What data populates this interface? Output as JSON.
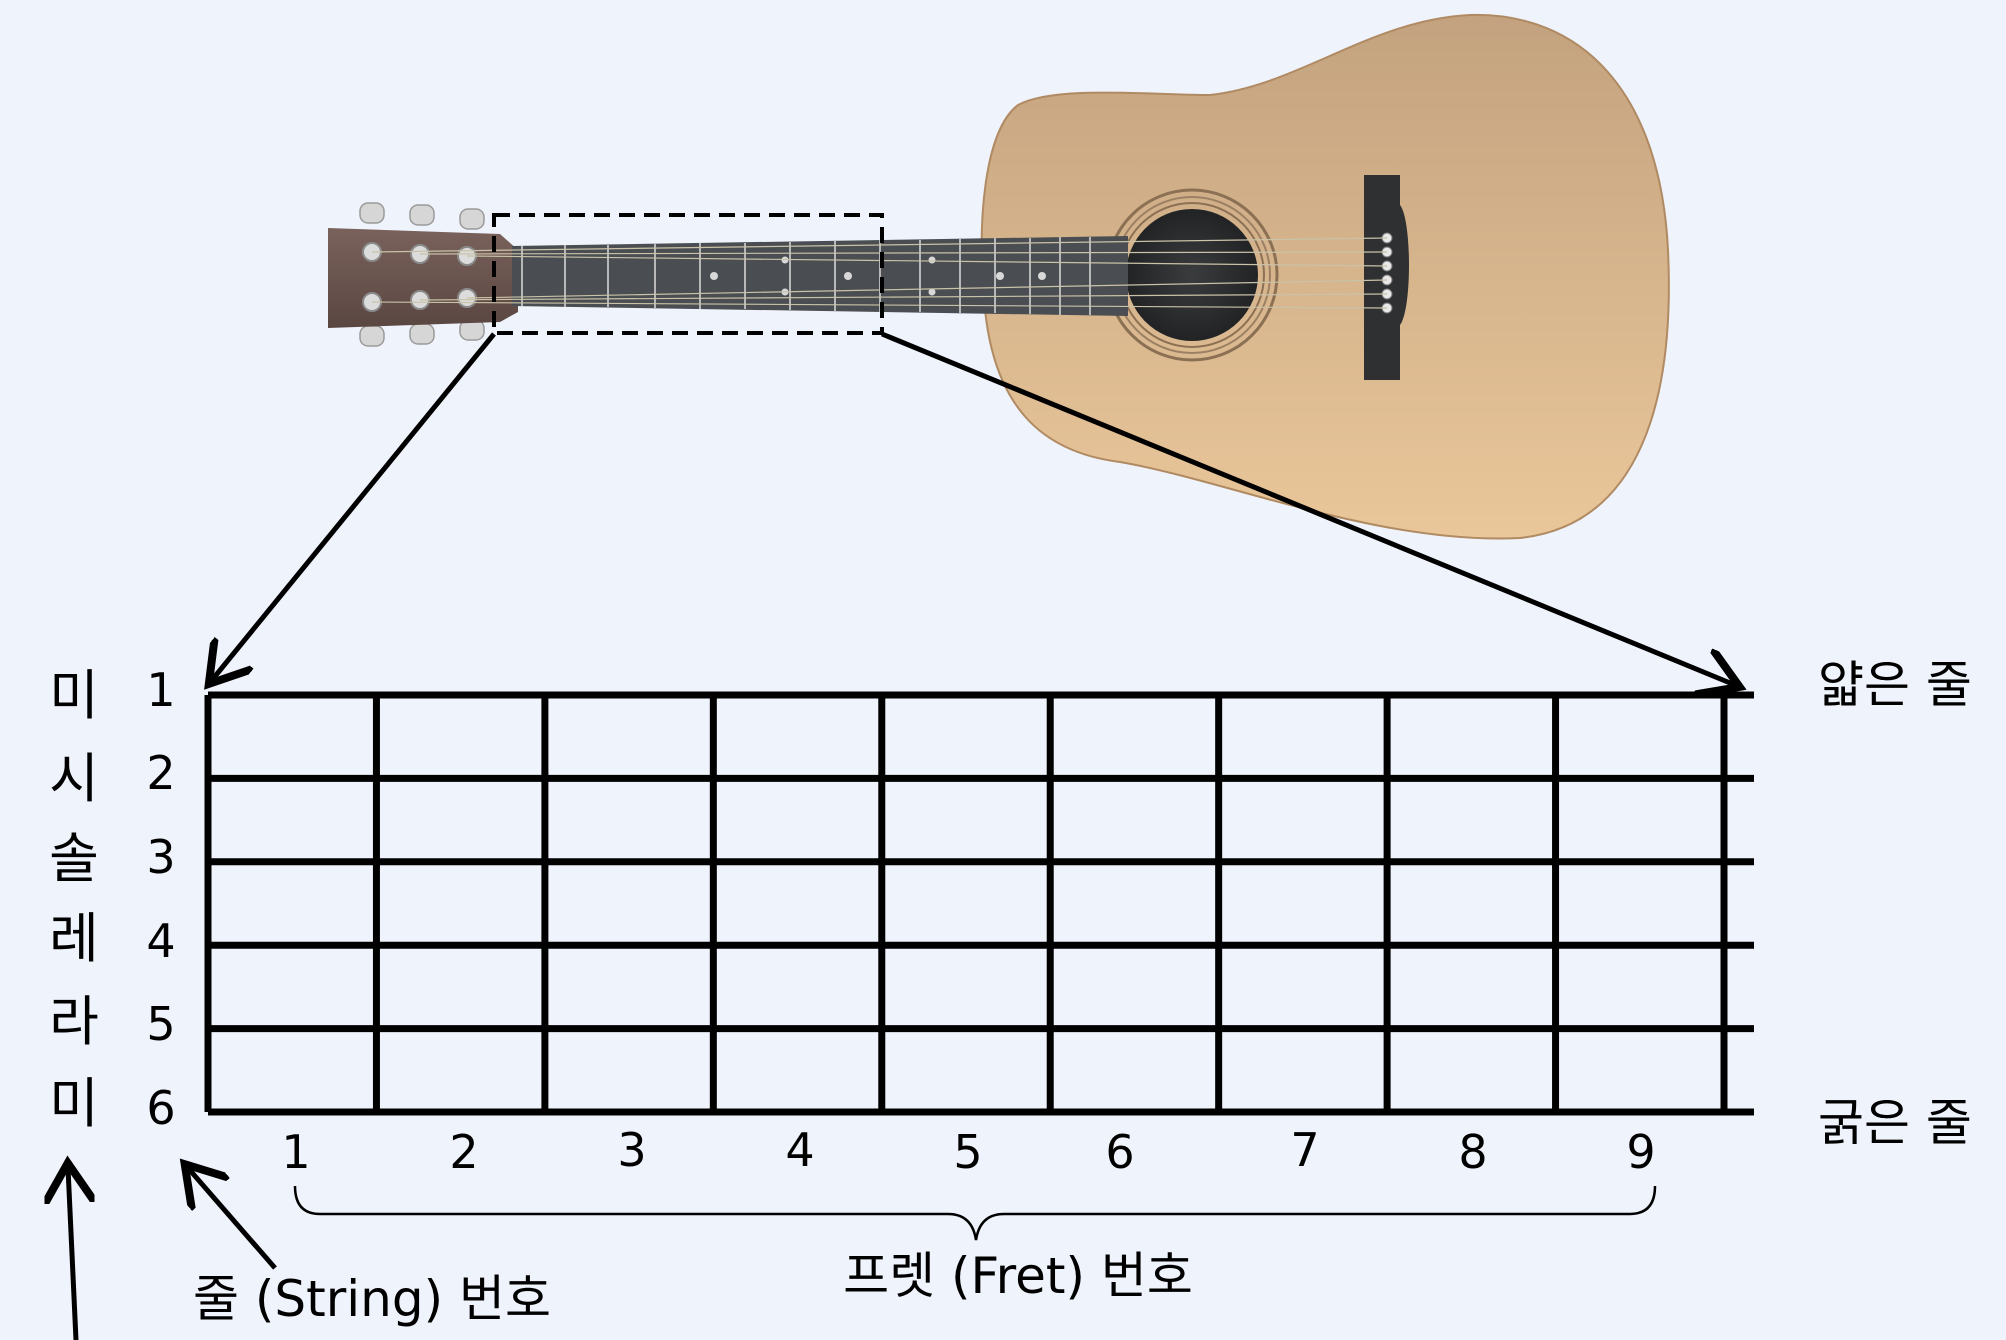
{
  "diagram": {
    "string_numbers": [
      "1",
      "2",
      "3",
      "4",
      "5",
      "6"
    ],
    "string_notes": [
      "미",
      "시",
      "솔",
      "레",
      "라",
      "미"
    ],
    "fret_numbers": [
      "1",
      "2",
      "3",
      "4",
      "5",
      "6",
      "7",
      "8",
      "9"
    ],
    "thin_string_label": "얇은 줄",
    "thick_string_label": "굵은 줄",
    "string_number_caption": "줄 (String) 번호",
    "fret_number_caption": "프렛 (Fret) 번호"
  },
  "colors": {
    "background": "#eff3fc",
    "guitar_body": "#d4ad7f",
    "headstock": "#6e5550",
    "fretboard": "#4a4e52",
    "sound_hole": "#303234",
    "grid": "#000000"
  }
}
